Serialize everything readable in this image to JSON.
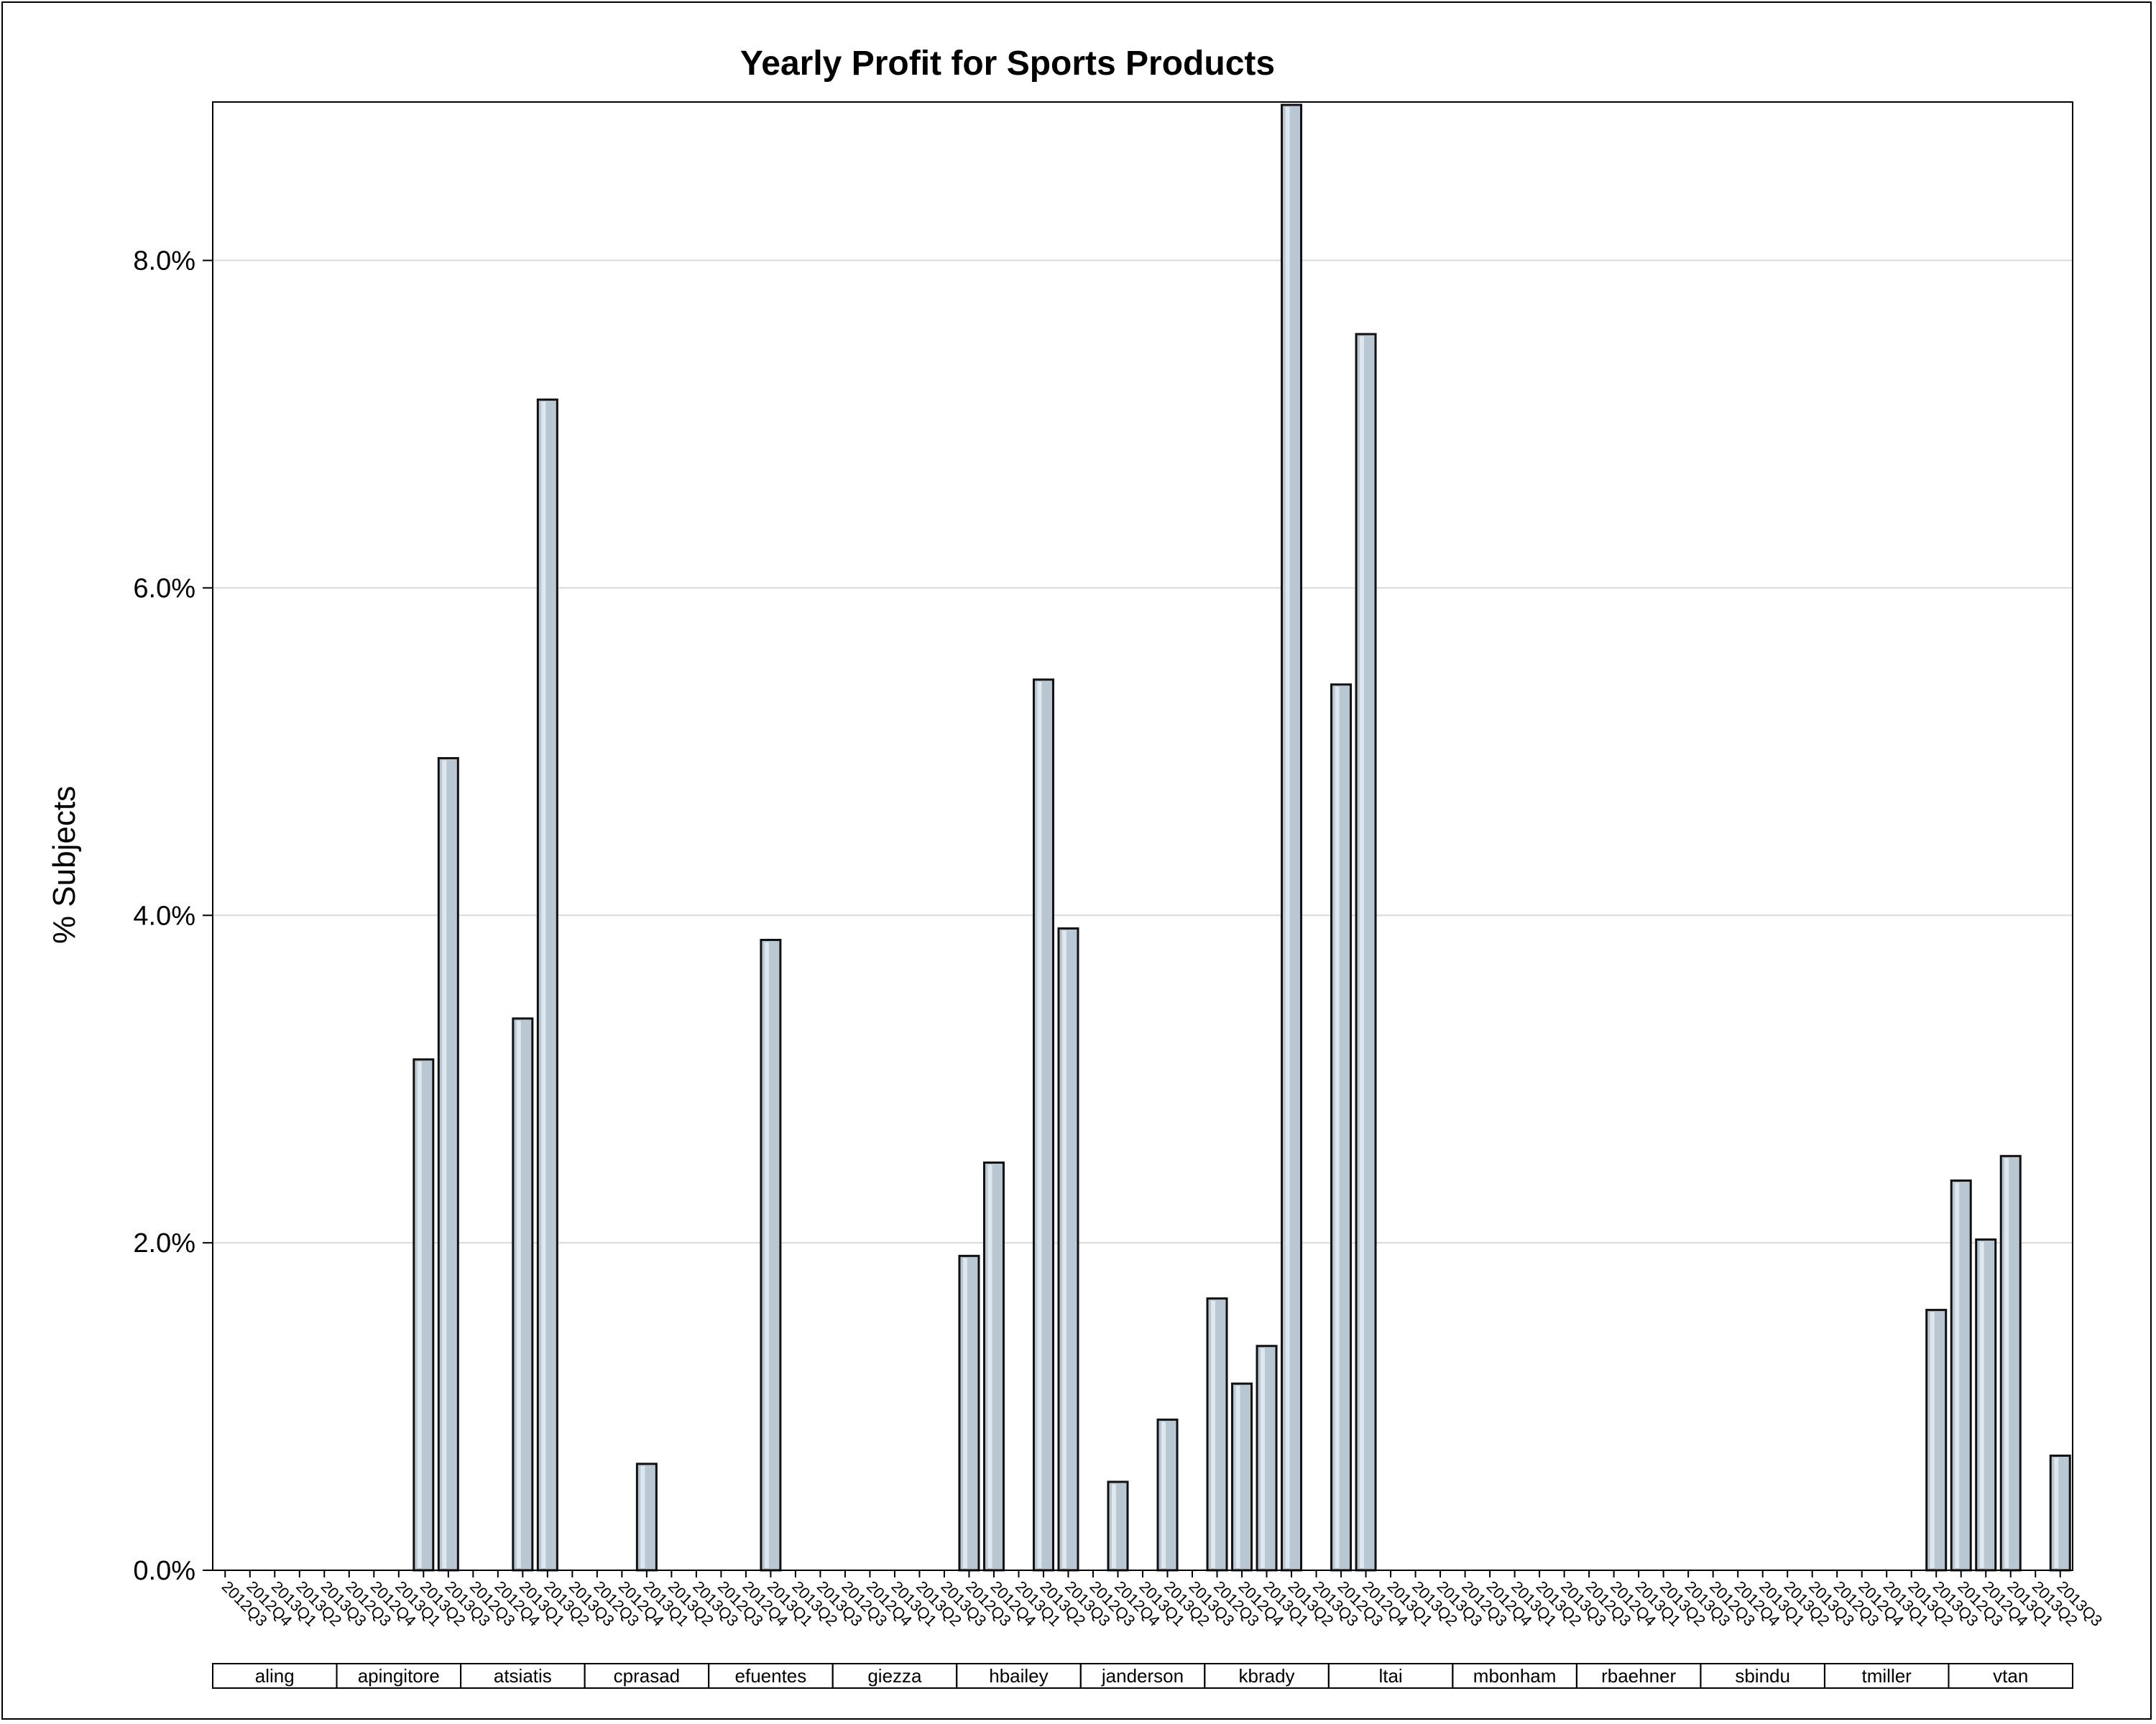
{
  "chart_data": {
    "type": "bar",
    "title": "Yearly Profit for Sports Products",
    "xlabel": "",
    "ylabel": "% Subjects",
    "ylim": [
      0,
      8.95
    ],
    "yticks": [
      0,
      2,
      4,
      6,
      8
    ],
    "ytick_labels": [
      "0.0%",
      "2.0%",
      "4.0%",
      "6.0%",
      "8.0%"
    ],
    "grid": true,
    "quarters": [
      "2012Q3",
      "2012Q4",
      "2013Q1",
      "2013Q2",
      "2013Q3"
    ],
    "groups": [
      {
        "name": "aling",
        "values": [
          0,
          0,
          0,
          0,
          0
        ]
      },
      {
        "name": "apingitore",
        "values": [
          0,
          0,
          0,
          3.12,
          4.96
        ]
      },
      {
        "name": "atsiatis",
        "values": [
          0,
          0,
          3.37,
          7.15,
          0
        ]
      },
      {
        "name": "cprasad",
        "values": [
          0,
          0,
          0.65,
          0,
          0
        ]
      },
      {
        "name": "efuentes",
        "values": [
          0,
          0,
          3.85,
          0,
          0
        ]
      },
      {
        "name": "giezza",
        "values": [
          0,
          0,
          0,
          0,
          0
        ]
      },
      {
        "name": "hbailey",
        "values": [
          1.92,
          2.49,
          0,
          5.44,
          3.92
        ]
      },
      {
        "name": "janderson",
        "values": [
          0,
          0.54,
          0,
          0.92,
          0
        ]
      },
      {
        "name": "kbrady",
        "values": [
          1.66,
          1.14,
          1.37,
          8.95,
          0
        ]
      },
      {
        "name": "ltai",
        "values": [
          5.41,
          7.55,
          0,
          0,
          0
        ]
      },
      {
        "name": "mbonham",
        "values": [
          0,
          0,
          0,
          0,
          0
        ]
      },
      {
        "name": "rbaehner",
        "values": [
          0,
          0,
          0,
          0,
          0
        ]
      },
      {
        "name": "sbindu",
        "values": [
          0,
          0,
          0,
          0,
          0
        ]
      },
      {
        "name": "tmiller",
        "values": [
          0,
          0,
          0,
          0,
          1.59
        ]
      },
      {
        "name": "vtan",
        "values": [
          2.38,
          2.02,
          2.53,
          0,
          0.7
        ]
      }
    ]
  }
}
